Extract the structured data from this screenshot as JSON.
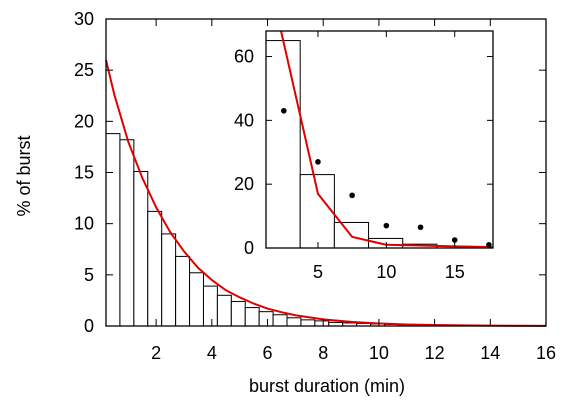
{
  "chart_data": [
    {
      "type": "bar",
      "xlabel": "burst duration (min)",
      "ylabel": "% of burst",
      "xlim": [
        0.2,
        16
      ],
      "ylim": [
        0,
        30
      ],
      "xticks": [
        2,
        4,
        6,
        8,
        10,
        12,
        14,
        16
      ],
      "yticks": [
        0,
        5,
        10,
        15,
        20,
        25,
        30
      ],
      "tick_labels_x": [
        "2",
        "4",
        "6",
        "8",
        "10",
        "12",
        "14",
        "16"
      ],
      "tick_labels_y": [
        "0",
        "5",
        "10",
        "15",
        "20",
        "25",
        "30"
      ],
      "bin_width": 0.5,
      "bins": [
        {
          "x0": 0.2,
          "value": 18.8
        },
        {
          "x0": 0.7,
          "value": 18.2
        },
        {
          "x0": 1.2,
          "value": 15.1
        },
        {
          "x0": 1.7,
          "value": 11.2
        },
        {
          "x0": 2.2,
          "value": 9.0
        },
        {
          "x0": 2.7,
          "value": 6.8
        },
        {
          "x0": 3.2,
          "value": 5.2
        },
        {
          "x0": 3.7,
          "value": 3.9
        },
        {
          "x0": 4.2,
          "value": 3.0
        },
        {
          "x0": 4.7,
          "value": 2.4
        },
        {
          "x0": 5.2,
          "value": 1.8
        },
        {
          "x0": 5.7,
          "value": 1.4
        },
        {
          "x0": 6.2,
          "value": 1.1
        },
        {
          "x0": 6.7,
          "value": 0.8
        },
        {
          "x0": 7.2,
          "value": 0.6
        },
        {
          "x0": 7.7,
          "value": 0.5
        },
        {
          "x0": 8.2,
          "value": 0.35
        },
        {
          "x0": 8.7,
          "value": 0.3
        },
        {
          "x0": 9.2,
          "value": 0.25
        },
        {
          "x0": 9.7,
          "value": 0.2
        },
        {
          "x0": 10.2,
          "value": 0.15
        },
        {
          "x0": 10.7,
          "value": 0.12
        },
        {
          "x0": 11.2,
          "value": 0.1
        },
        {
          "x0": 11.7,
          "value": 0.08
        },
        {
          "x0": 12.2,
          "value": 0.06
        }
      ],
      "fit_curve": {
        "color": "#e00000",
        "x": [
          0.2,
          0.5,
          1,
          1.5,
          2,
          2.5,
          3,
          3.5,
          4,
          4.5,
          5,
          5.5,
          6,
          6.5,
          7,
          8,
          9,
          10,
          11,
          12,
          13,
          14,
          15,
          16
        ],
        "y": [
          26.0,
          22.6,
          18.0,
          14.5,
          11.6,
          9.2,
          7.3,
          5.7,
          4.5,
          3.5,
          2.8,
          2.2,
          1.7,
          1.35,
          1.05,
          0.65,
          0.4,
          0.25,
          0.15,
          0.1,
          0.06,
          0.04,
          0.02,
          0.01
        ]
      }
    },
    {
      "type": "bar",
      "inset": true,
      "xlim": [
        1.2,
        17.8
      ],
      "ylim": [
        0,
        68
      ],
      "xticks": [
        5,
        10,
        15
      ],
      "yticks": [
        0,
        20,
        40,
        60
      ],
      "tick_labels_x": [
        "5",
        "10",
        "15"
      ],
      "tick_labels_y": [
        "0",
        "20",
        "40",
        "60"
      ],
      "bins": [
        {
          "x0": 1.2,
          "x1": 3.7,
          "value": 65
        },
        {
          "x0": 3.7,
          "x1": 6.2,
          "value": 23
        },
        {
          "x0": 6.2,
          "x1": 8.7,
          "value": 8
        },
        {
          "x0": 8.7,
          "x1": 11.2,
          "value": 3
        },
        {
          "x0": 11.2,
          "x1": 13.7,
          "value": 1.2
        },
        {
          "x0": 13.7,
          "x1": 16.2,
          "value": 0.5
        },
        {
          "x0": 16.2,
          "x1": 17.8,
          "value": 0.3
        }
      ],
      "points": [
        {
          "x": 2.5,
          "y": 43
        },
        {
          "x": 5.0,
          "y": 27
        },
        {
          "x": 7.5,
          "y": 16.5
        },
        {
          "x": 10.0,
          "y": 7
        },
        {
          "x": 12.5,
          "y": 6.5
        },
        {
          "x": 15.0,
          "y": 2.5
        },
        {
          "x": 17.5,
          "y": 1
        }
      ],
      "fit_curve": {
        "color": "#e00000",
        "x": [
          2.3,
          5.0,
          7.5,
          10.0,
          12.5,
          15.0,
          17.5
        ],
        "y": [
          68,
          17,
          3.5,
          1,
          0.8,
          0.5,
          0.3
        ]
      }
    }
  ]
}
